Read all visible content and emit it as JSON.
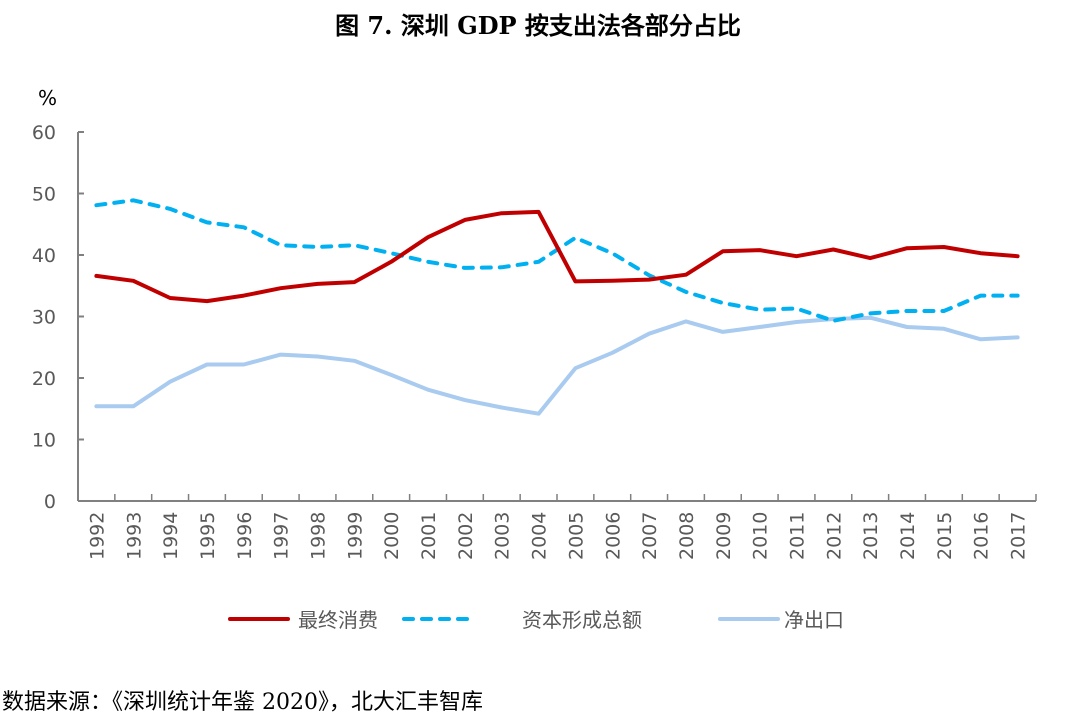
{
  "title": "图 7.  深圳 GDP 按支出法各部分占比",
  "source": "数据来源：《深圳统计年鉴 2020》，北大汇丰智库",
  "chart_data": {
    "type": "line",
    "title": "图 7.  深圳 GDP 按支出法各部分占比",
    "xlabel": "",
    "ylabel": "%",
    "ylim": [
      0,
      60
    ],
    "yticks": [
      0,
      10,
      20,
      30,
      40,
      50,
      60
    ],
    "grid": false,
    "legend_position": "bottom",
    "x": [
      "1992",
      "1993",
      "1994",
      "1995",
      "1996",
      "1997",
      "1998",
      "1999",
      "2000",
      "2001",
      "2002",
      "2003",
      "2004",
      "2005",
      "2006",
      "2007",
      "2008",
      "2009",
      "2010",
      "2011",
      "2012",
      "2013",
      "2014",
      "2015",
      "2016",
      "2017"
    ],
    "series": [
      {
        "name": "最终消费",
        "color": "#C00000",
        "dash": "solid",
        "values": [
          36.6,
          35.8,
          33.0,
          32.5,
          33.4,
          34.6,
          35.3,
          35.6,
          38.9,
          42.9,
          45.7,
          46.8,
          47.0,
          35.7,
          35.8,
          36.0,
          36.8,
          40.6,
          40.8,
          39.8,
          40.9,
          39.5,
          41.1,
          41.3,
          40.3,
          39.8
        ]
      },
      {
        "name": "资本形成总额",
        "color": "#00B0F0",
        "dash": "dashed",
        "values": [
          48.1,
          48.9,
          47.5,
          45.3,
          44.5,
          41.6,
          41.3,
          41.6,
          40.3,
          38.9,
          37.9,
          38.0,
          38.9,
          42.8,
          40.3,
          36.7,
          34.0,
          32.2,
          31.1,
          31.3,
          29.3,
          30.5,
          30.9,
          30.9,
          33.4,
          33.4
        ]
      },
      {
        "name": "净出口",
        "color": "#A9CBEF",
        "dash": "solid",
        "values": [
          15.4,
          15.4,
          19.4,
          22.2,
          22.2,
          23.8,
          23.5,
          22.8,
          20.5,
          18.1,
          16.4,
          15.2,
          14.2,
          21.6,
          24.1,
          27.2,
          29.2,
          27.5,
          28.3,
          29.1,
          29.6,
          29.8,
          28.3,
          28.0,
          26.3,
          26.6
        ]
      }
    ]
  }
}
